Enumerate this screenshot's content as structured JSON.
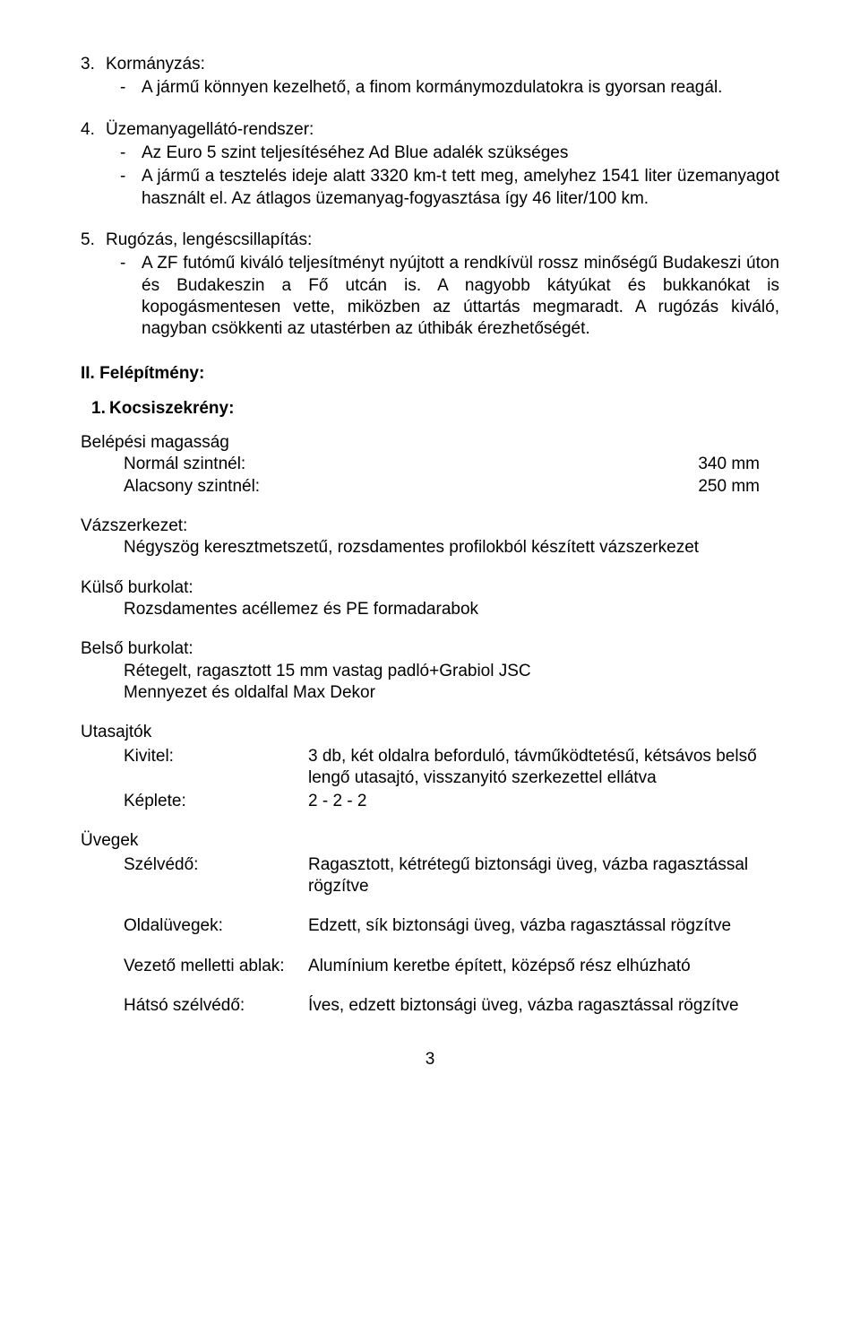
{
  "item3": {
    "num": "3.",
    "title": "Kormányzás:",
    "bullets": [
      "A jármű könnyen kezelhető, a finom kormánymozdulatokra is gyorsan reagál."
    ]
  },
  "item4": {
    "num": "4.",
    "title": "Üzemanyagellátó-rendszer:",
    "bullets": [
      "Az Euro 5 szint teljesítéséhez Ad Blue adalék szükséges",
      "A jármű a tesztelés ideje alatt 3320 km-t tett meg, amelyhez 1541 liter üzemanyagot használt el. Az átlagos üzemanyag-fogyasztása így 46 liter/100 km."
    ]
  },
  "item5": {
    "num": "5.",
    "title": "Rugózás, lengéscsillapítás:",
    "bullets": [
      "A ZF futómű kiváló teljesítményt nyújtott a rendkívül rossz minőségű Budakeszi úton és Budakeszin a Fő utcán is. A nagyobb kátyúkat és bukkanókat is kopogásmentesen vette, miközben az úttartás megmaradt. A rugózás kiváló, nagyban csökkenti az utastérben az úthibák érezhetőségét."
    ]
  },
  "sectionII": {
    "num": "II.",
    "title": "Felépítmény:"
  },
  "sub1": {
    "num": "1.",
    "title": "Kocsiszekrény:"
  },
  "entry_height": {
    "label": "Belépési magasság",
    "rows": [
      {
        "k": "Normál szintnél:",
        "v": "340 mm"
      },
      {
        "k": "Alacsony szintnél:",
        "v": "250 mm"
      }
    ]
  },
  "frame": {
    "title": "Vázszerkezet:",
    "body": "Négyszög keresztmetszetű, rozsdamentes profilokból készített vázszerkezet"
  },
  "outer": {
    "title": "Külső burkolat:",
    "body": "Rozsdamentes acéllemez és PE formadarabok"
  },
  "inner": {
    "title": "Belső burkolat:",
    "lines": [
      "Rétegelt, ragasztott 15 mm vastag padló+Grabiol JSC",
      "Mennyezet és oldalfal Max Dekor"
    ]
  },
  "doors": {
    "title": "Utasajtók",
    "rows": [
      {
        "k": "Kivitel:",
        "v": "3 db, két oldalra beforduló, távműködtetésű, kétsávos belső lengő utasajtó, visszanyitó szerkezettel ellátva"
      },
      {
        "k": "Képlete:",
        "v": " 2 - 2 - 2"
      }
    ]
  },
  "glasses": {
    "title": "Üvegek",
    "rows": [
      {
        "k": "Szélvédő:",
        "v": "Ragasztott, kétrétegű biztonsági üveg, vázba ragasztással rögzítve"
      },
      {
        "k": "Oldalüvegek:",
        "v": "Edzett, sík biztonsági üveg, vázba ragasztással rögzítve"
      },
      {
        "k": "Vezető melletti ablak:",
        "v": "Alumínium keretbe épített, középső rész elhúzható"
      },
      {
        "k": "Hátsó szélvédő:",
        "v": "Íves, edzett biztonsági üveg, vázba ragasztással rögzítve"
      }
    ]
  },
  "page_number": "3"
}
